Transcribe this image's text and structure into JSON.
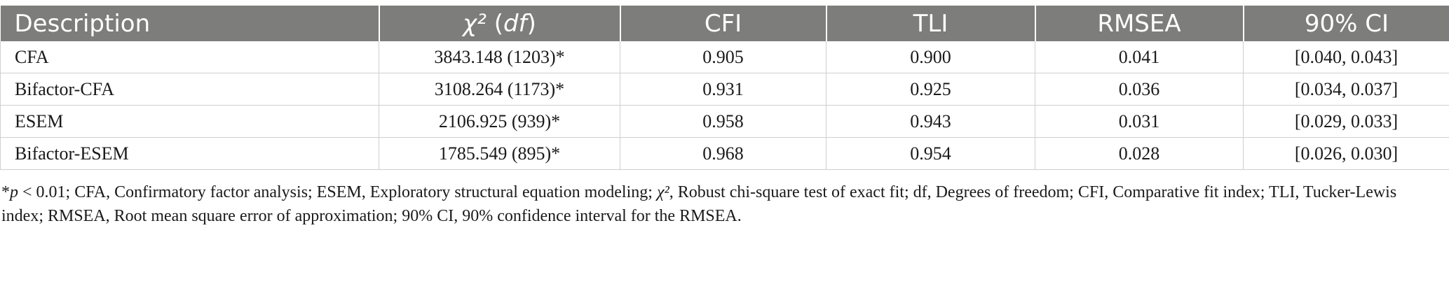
{
  "table": {
    "headers": [
      {
        "pre": "Description",
        "ital": "",
        "post": ""
      },
      {
        "pre": "",
        "ital": "χ²",
        "post": " (",
        "ital2": "df",
        "post2": ")"
      },
      {
        "pre": "CFI"
      },
      {
        "pre": "TLI"
      },
      {
        "pre": "RMSEA"
      },
      {
        "pre": "90% CI"
      }
    ],
    "rows": [
      [
        "CFA",
        "3843.148 (1203)*",
        "0.905",
        "0.900",
        "0.041",
        "[0.040, 0.043]"
      ],
      [
        "Bifactor-CFA",
        "3108.264 (1173)*",
        "0.931",
        "0.925",
        "0.036",
        "[0.034, 0.037]"
      ],
      [
        "ESEM",
        "2106.925 (939)*",
        "0.958",
        "0.943",
        "0.031",
        "[0.029, 0.033]"
      ],
      [
        "Bifactor-ESEM",
        "1785.549 (895)*",
        "0.968",
        "0.954",
        "0.028",
        "[0.026, 0.030]"
      ]
    ]
  },
  "footnote": {
    "star": "*",
    "p": "p",
    "p_rest": " < 0.01; CFA, Confirmatory factor analysis; ESEM, Exploratory structural equation modeling; ",
    "chi": "χ²",
    "rest": ", Robust chi-square test of exact fit; df, Degrees of freedom; CFI, Comparative fit index; TLI, Tucker-Lewis index; RMSEA, Root mean square error of approximation; 90% CI, 90% confidence interval for the RMSEA."
  }
}
